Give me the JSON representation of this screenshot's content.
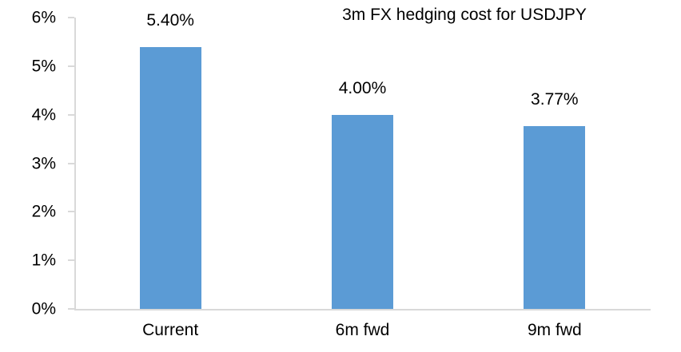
{
  "chart_data": {
    "type": "bar",
    "title": "3m FX hedging cost for USDJPY",
    "categories": [
      "Current",
      "6m fwd",
      "9m fwd"
    ],
    "values": [
      5.4,
      4.0,
      3.77
    ],
    "data_labels": [
      "5.40%",
      "4.00%",
      "3.77%"
    ],
    "xlabel": "",
    "ylabel": "",
    "ylim": [
      0,
      6
    ],
    "ytick_interval": 1,
    "yticks": [
      "0%",
      "1%",
      "2%",
      "3%",
      "4%",
      "5%",
      "6%"
    ],
    "grid": false,
    "legend": false,
    "bar_color": "#5B9BD5",
    "axis_color": "#D9D9D9",
    "text_color": "#000000"
  }
}
